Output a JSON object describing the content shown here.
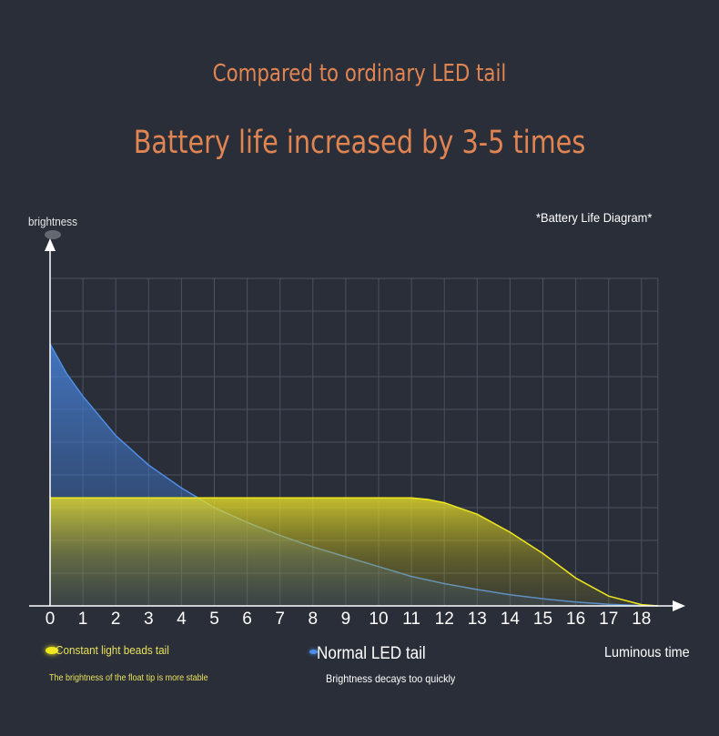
{
  "header": {
    "subtitle": "Compared to ordinary LED tail",
    "title": "Battery life increased by 3-5 times",
    "diagram_label": "*Battery Life Diagram*"
  },
  "legend": {
    "constant": {
      "label": "Constant light beads tail",
      "note": "The brightness of the float tip is more stable",
      "color": "#f0e81e"
    },
    "normal": {
      "label": "Normal LED tail",
      "note": "Brightness decays too quickly",
      "color": "#4e8ee6"
    }
  },
  "chart_data": {
    "type": "area",
    "title": "Battery life increased by 3-5 times",
    "subtitle": "Compared to ordinary LED tail",
    "xlabel": "Luminous time",
    "ylabel": "brightness",
    "xlim": [
      0,
      18.5
    ],
    "ylim": [
      0,
      10
    ],
    "x_ticks": [
      0,
      1,
      2,
      3,
      4,
      5,
      6,
      7,
      8,
      9,
      10,
      11,
      12,
      13,
      14,
      15,
      16,
      17,
      18
    ],
    "grid": true,
    "legend_position": "bottom",
    "series": [
      {
        "name": "Normal LED tail",
        "color": "#4e8ee6",
        "x": [
          0,
          0.5,
          1,
          1.5,
          2,
          3,
          4,
          5,
          6,
          7,
          8,
          9,
          10,
          11,
          12,
          13,
          14,
          15,
          16,
          17,
          18,
          18.5
        ],
        "y": [
          8,
          7.1,
          6.4,
          5.8,
          5.2,
          4.3,
          3.6,
          3.0,
          2.55,
          2.15,
          1.8,
          1.5,
          1.2,
          0.9,
          0.68,
          0.5,
          0.34,
          0.22,
          0.12,
          0.05,
          0.01,
          0
        ]
      },
      {
        "name": "Constant light beads tail",
        "color": "#f0e81e",
        "x": [
          0,
          1,
          2,
          3,
          4,
          5,
          6,
          7,
          8,
          9,
          10,
          11,
          11.5,
          12,
          13,
          14,
          15,
          16,
          17,
          18,
          18.5
        ],
        "y": [
          3.3,
          3.3,
          3.3,
          3.3,
          3.3,
          3.3,
          3.3,
          3.3,
          3.3,
          3.3,
          3.3,
          3.3,
          3.25,
          3.15,
          2.8,
          2.25,
          1.6,
          0.85,
          0.3,
          0.04,
          0
        ]
      }
    ]
  }
}
